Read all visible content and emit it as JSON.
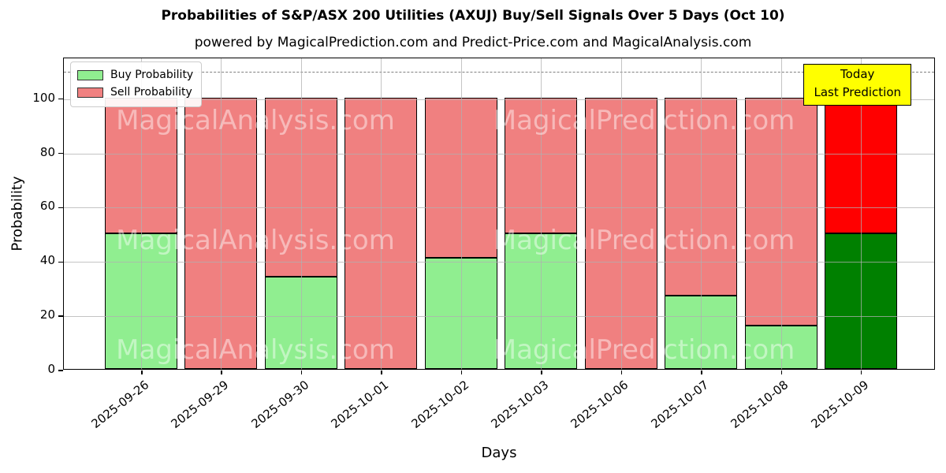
{
  "figure": {
    "title": "Probabilities of S&P/ASX 200 Utilities (AXUJ) Buy/Sell Signals Over 5 Days (Oct 10)",
    "subtitle": "powered by MagicalPrediction.com and Predict-Price.com and MagicalAnalysis.com"
  },
  "chart_data": {
    "type": "bar",
    "stacked": true,
    "xlabel": "Days",
    "ylabel": "Probability",
    "ylim": [
      0,
      115
    ],
    "yticks": [
      0,
      20,
      40,
      60,
      80,
      100
    ],
    "grid": true,
    "legend_position": "upper left",
    "categories": [
      "2025-09-26",
      "2025-09-29",
      "2025-09-30",
      "2025-10-01",
      "2025-10-02",
      "2025-10-03",
      "2025-10-06",
      "2025-10-07",
      "2025-10-08",
      "2025-10-09"
    ],
    "series": [
      {
        "name": "Buy Probability",
        "color": "#90EE90",
        "values": [
          50,
          0,
          34,
          0,
          41,
          50,
          0,
          27,
          16,
          50
        ]
      },
      {
        "name": "Sell Probability",
        "color": "#F08080",
        "values": [
          50,
          100,
          66,
          100,
          59,
          50,
          100,
          73,
          84,
          50
        ]
      }
    ],
    "today_bar": {
      "category": "2025-10-09",
      "index": 9,
      "buy_color": "#008000",
      "sell_color": "#FF0000"
    },
    "reference_line": {
      "y": 110,
      "style": "dashed",
      "color": "#7f7f7f"
    },
    "annotation_box": {
      "lines": [
        "Today",
        "Last Prediction"
      ],
      "bg_color": "#FFFF00",
      "border_color": "#000000"
    },
    "watermarks": {
      "left_text": "MagicalAnalysis.com",
      "right_text": "MagicalPrediction.com"
    }
  }
}
